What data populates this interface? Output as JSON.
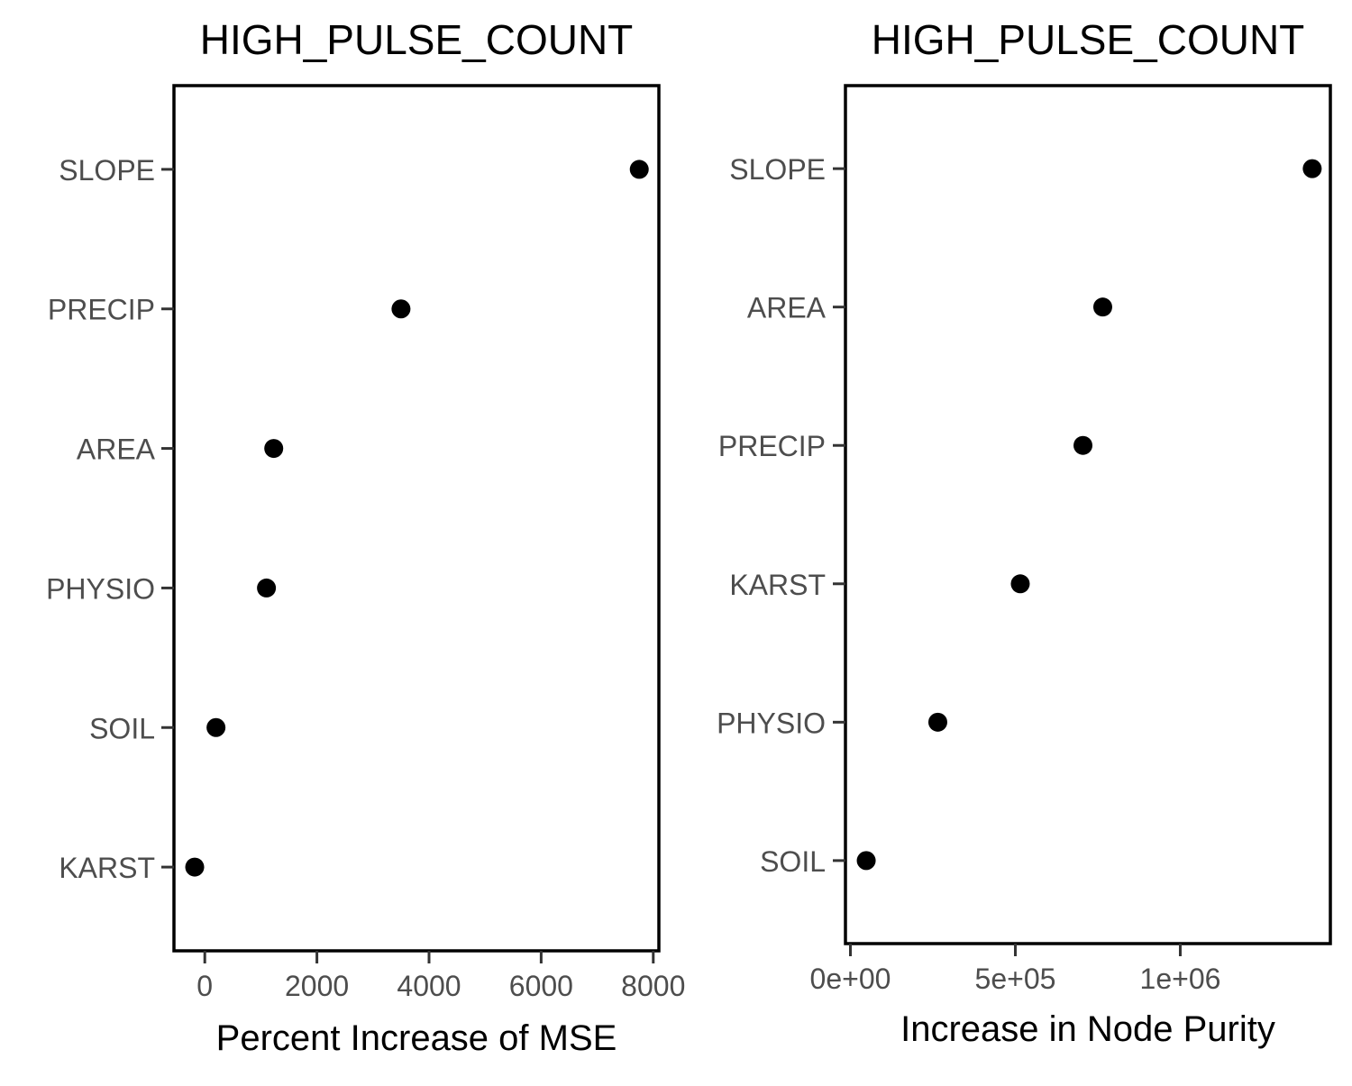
{
  "chart_data": [
    {
      "type": "scatter",
      "title": "HIGH_PULSE_COUNT",
      "xlabel": "Percent Increase of MSE",
      "ylabel": "",
      "categories": [
        "KARST",
        "SOIL",
        "PHYSIO",
        "AREA",
        "PRECIP",
        "SLOPE"
      ],
      "values": [
        -180,
        200,
        1100,
        1230,
        3500,
        7750
      ],
      "xlim": [
        -550,
        8100
      ],
      "xticks": [
        0,
        2000,
        4000,
        6000,
        8000
      ],
      "xtick_labels": [
        "0",
        "2000",
        "4000",
        "6000",
        "8000"
      ],
      "grid": false,
      "point_color": "#000000"
    },
    {
      "type": "scatter",
      "title": "HIGH_PULSE_COUNT",
      "xlabel": "Increase in Node Purity",
      "ylabel": "",
      "categories": [
        "SOIL",
        "PHYSIO",
        "KARST",
        "PRECIP",
        "AREA",
        "SLOPE"
      ],
      "values": [
        48000,
        265000,
        515000,
        705000,
        765000,
        1400000
      ],
      "xlim": [
        -15000,
        1455000
      ],
      "xticks": [
        0,
        500000,
        1000000
      ],
      "xtick_labels": [
        "0e+00",
        "5e+05",
        "1e+06"
      ],
      "grid": false,
      "point_color": "#000000"
    }
  ]
}
